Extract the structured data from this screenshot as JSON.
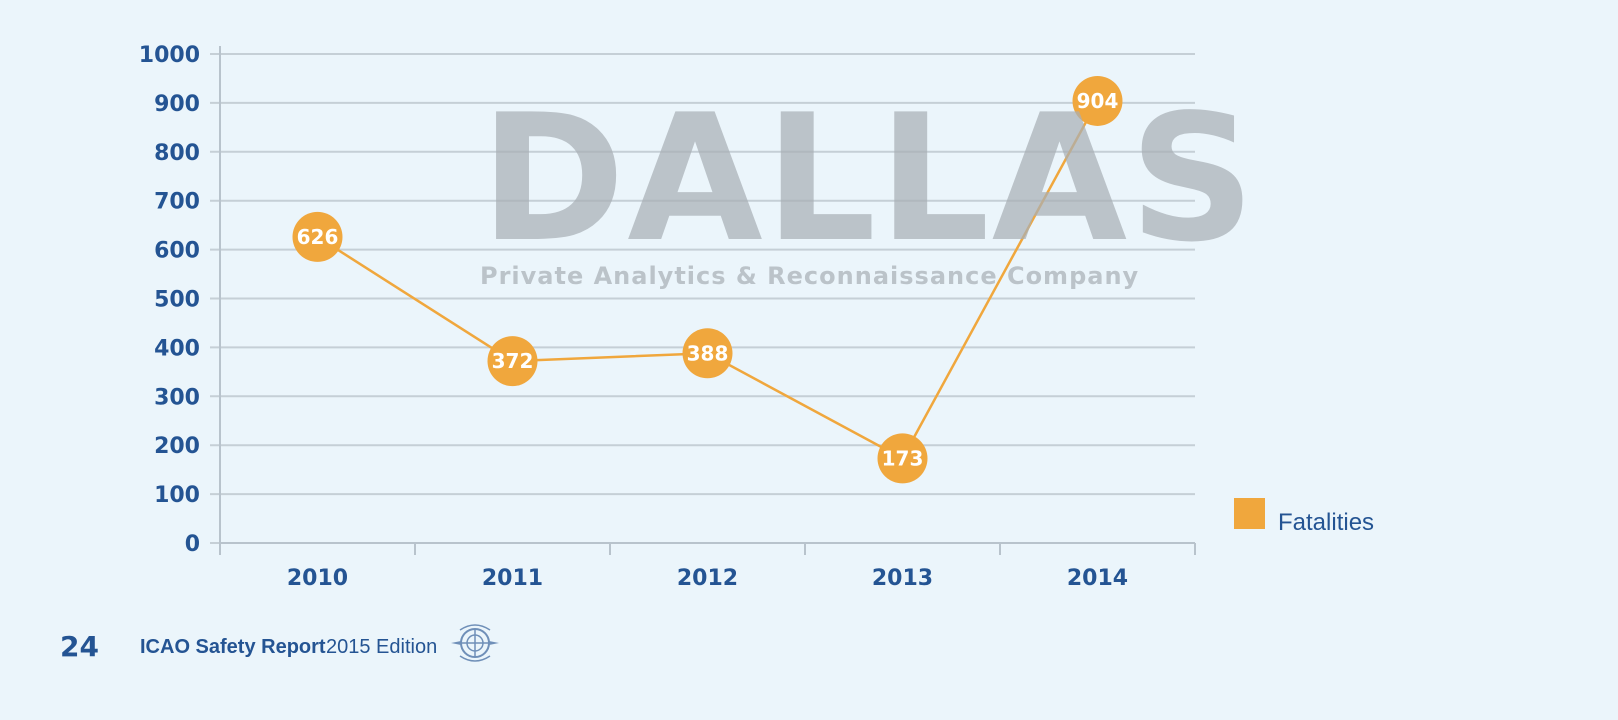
{
  "chart_data": {
    "type": "line",
    "categories": [
      "2010",
      "2011",
      "2012",
      "2013",
      "2014"
    ],
    "series": [
      {
        "name": "Fatalities",
        "values": [
          626,
          372,
          388,
          173,
          904
        ],
        "color": "#f0a73d"
      }
    ],
    "ylim": [
      0,
      1000
    ],
    "yticks": [
      "0",
      "100",
      "200",
      "300",
      "400",
      "500",
      "600",
      "700",
      "800",
      "900",
      "1000"
    ],
    "data_labels": [
      "626",
      "372",
      "388",
      "173",
      "904"
    ],
    "grid": true,
    "legend_position": "right",
    "axis_color": "#245493"
  },
  "watermark": {
    "title": "DALLAS",
    "subtitle": "Private Analytics & Reconnaissance Company"
  },
  "footer": {
    "page_number": "24",
    "report_title": "ICAO Safety Report",
    "edition": "2015 Edition",
    "logo_icon": "icao-emblem-icon"
  }
}
